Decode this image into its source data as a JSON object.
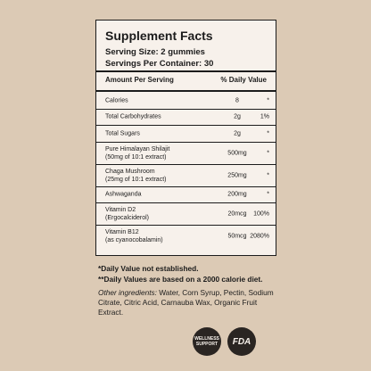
{
  "label": {
    "title": "Supplement Facts",
    "serving_size": "Serving Size: 2 gummies",
    "servings_per_container": "Servings Per Container: 30",
    "header": {
      "amount": "Amount Per Serving",
      "daily_value": "% Daily Value"
    },
    "rows": [
      {
        "name": "Calories",
        "amount": "8",
        "daily_value": "*"
      },
      {
        "name": "Total Carbohydrates",
        "amount": "2g",
        "daily_value": "1%"
      },
      {
        "name": "Total Sugars",
        "amount": "2g",
        "daily_value": "*"
      },
      {
        "name": "Pure Himalayan Shilajit",
        "detail": "(50mg of 10:1 extract)",
        "amount": "500mg",
        "daily_value": "*"
      },
      {
        "name": "Chaga Mushroom",
        "detail": "(25mg of 10:1 extract)",
        "amount": "250mg",
        "daily_value": "*"
      },
      {
        "name": "Ashwaganda",
        "amount": "200mg",
        "daily_value": "*"
      },
      {
        "name": "Vitamin D2",
        "detail": "(Ergocalciderol)",
        "amount": "20mcg",
        "daily_value": "100%"
      },
      {
        "name": "Vitamin B12",
        "detail": "(as cyanocobalamin)",
        "amount": "50mcg",
        "daily_value": "2080%"
      }
    ]
  },
  "footnotes": [
    "*Daily Value not established.",
    "**Daily Values are based on a 2000 calorie diet."
  ],
  "other_ingredients": {
    "label": "Other ingredients:",
    "text": " Water, Corn Syrup, Pectin, Sodium Citrate, Citric Acid, Carnauba Wax, Organic Fruit Extract."
  },
  "badges": [
    {
      "text": "WELLNESS SUPPORT"
    },
    {
      "text": "FDA"
    }
  ]
}
